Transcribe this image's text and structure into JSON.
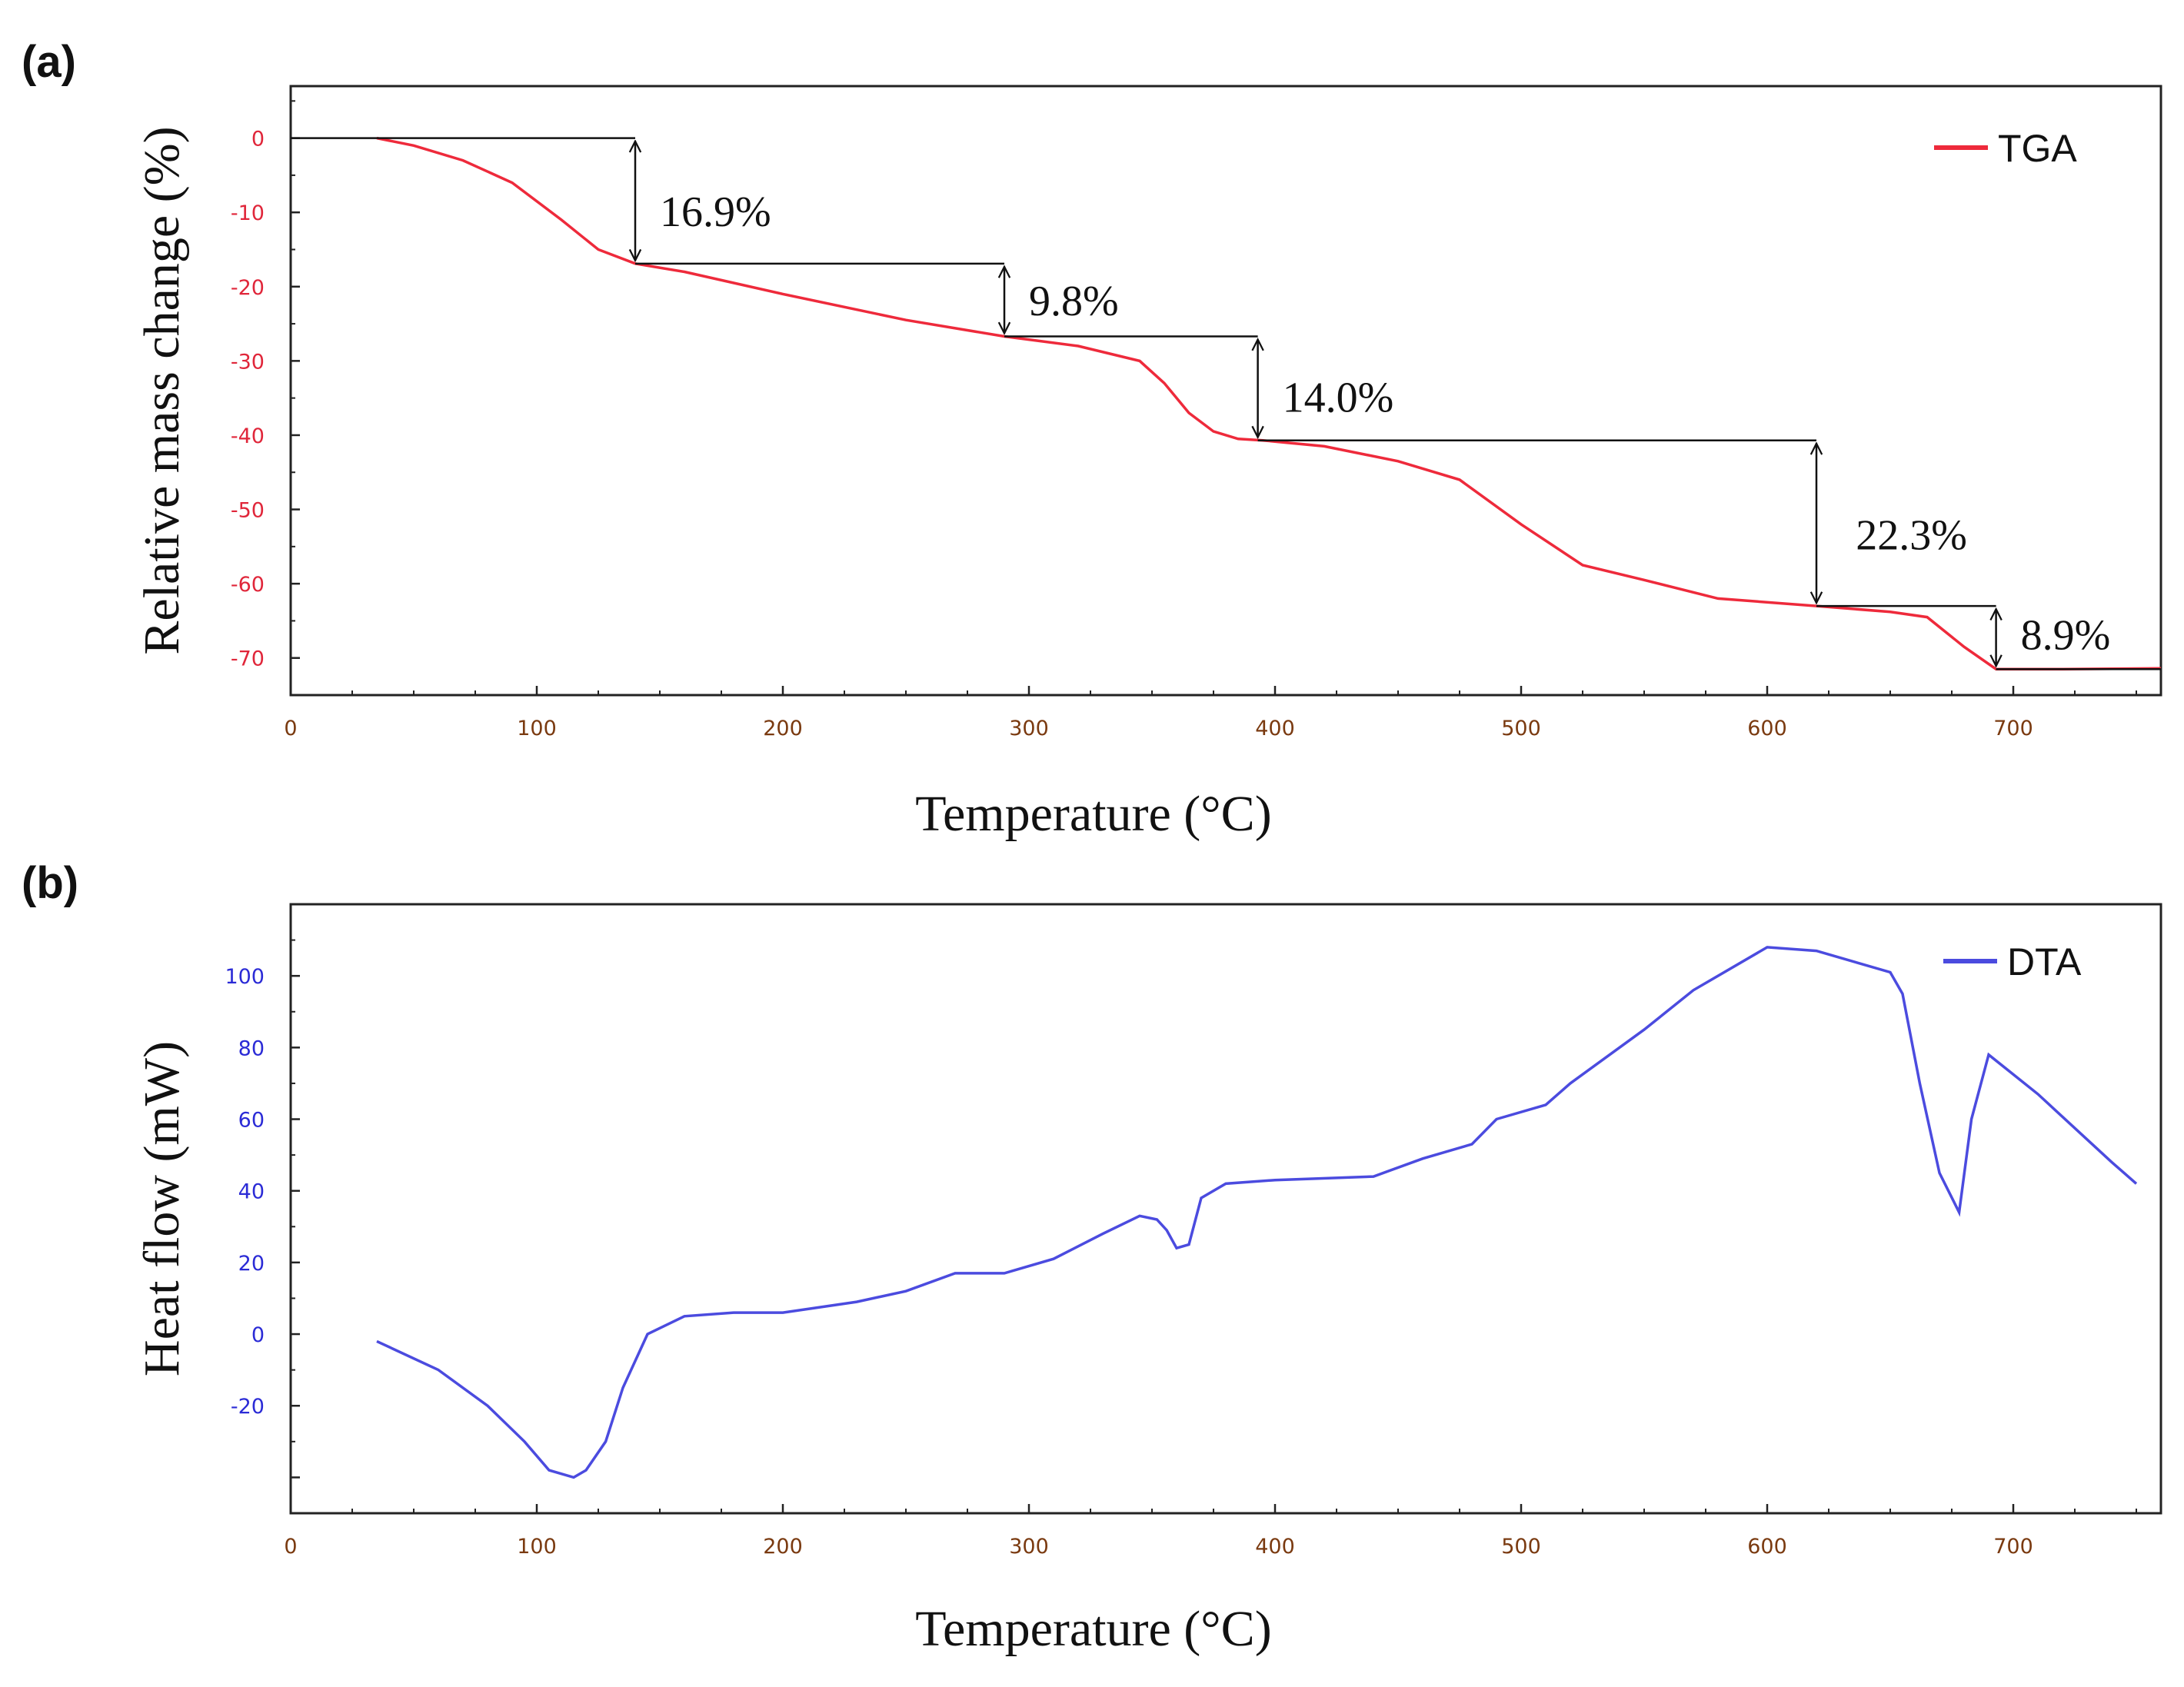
{
  "chart_data": [
    {
      "panel": "(a)",
      "type": "line",
      "title": "",
      "xlabel": "Temperature (°C)",
      "ylabel": "Relative mass change (%)",
      "xlim": [
        0,
        760
      ],
      "ylim": [
        -75,
        7
      ],
      "xticks": [
        "0",
        "100",
        "200",
        "300",
        "400",
        "500",
        "600",
        "700"
      ],
      "yticks": [
        "0",
        "-10",
        "-20",
        "-30",
        "-40",
        "-50",
        "-60",
        "-70"
      ],
      "grid": false,
      "legend_position": "top-right",
      "series": [
        {
          "name": "TGA",
          "color": "#ee2a3b",
          "x": [
            35,
            50,
            70,
            90,
            110,
            125,
            140,
            160,
            200,
            250,
            290,
            320,
            345,
            355,
            365,
            375,
            385,
            395,
            420,
            450,
            475,
            500,
            525,
            550,
            580,
            620,
            650,
            665,
            680,
            693,
            720,
            760
          ],
          "y": [
            0,
            -1,
            -3,
            -6,
            -11,
            -15,
            -16.9,
            -18,
            -21,
            -24.5,
            -26.7,
            -28,
            -30,
            -33,
            -37,
            -39.5,
            -40.5,
            -40.7,
            -41.5,
            -43.5,
            -46,
            -52,
            -57.5,
            -59.5,
            -62,
            -63,
            -63.8,
            -64.5,
            -68.5,
            -71.5,
            -71.5,
            -71.4
          ]
        }
      ],
      "annotations": [
        {
          "text": "16.9%"
        },
        {
          "text": "9.8%"
        },
        {
          "text": "14.0%"
        },
        {
          "text": "22.3%"
        },
        {
          "text": "8.9%"
        }
      ]
    },
    {
      "panel": "(b)",
      "type": "line",
      "title": "",
      "xlabel": "Temperature (°C)",
      "ylabel": "Heat flow (mW)",
      "xlim": [
        0,
        760
      ],
      "ylim": [
        -50,
        120
      ],
      "xticks": [
        "0",
        "100",
        "200",
        "300",
        "400",
        "500",
        "600",
        "700"
      ],
      "yticks": [
        "100",
        "80",
        "60",
        "40",
        "20",
        "0",
        "-20",
        ""
      ],
      "grid": false,
      "legend_position": "top-right",
      "series": [
        {
          "name": "DTA",
          "color": "#4b4bdf",
          "x": [
            35,
            60,
            80,
            95,
            105,
            115,
            120,
            128,
            135,
            145,
            160,
            180,
            200,
            230,
            250,
            270,
            290,
            310,
            330,
            345,
            352,
            356,
            360,
            365,
            370,
            380,
            400,
            440,
            460,
            480,
            490,
            510,
            520,
            550,
            570,
            600,
            620,
            650,
            655,
            662,
            670,
            678,
            683,
            690,
            710,
            740,
            750
          ],
          "y": [
            -2,
            -10,
            -20,
            -30,
            -38,
            -40,
            -38,
            -30,
            -15,
            0,
            5,
            6,
            6,
            9,
            12,
            17,
            17,
            21,
            28,
            33,
            32,
            29,
            24,
            25,
            38,
            42,
            43,
            44,
            49,
            53,
            60,
            64,
            70,
            85,
            96,
            108,
            107,
            101,
            95,
            70,
            45,
            34,
            60,
            78,
            67,
            48,
            42
          ]
        }
      ]
    }
  ]
}
